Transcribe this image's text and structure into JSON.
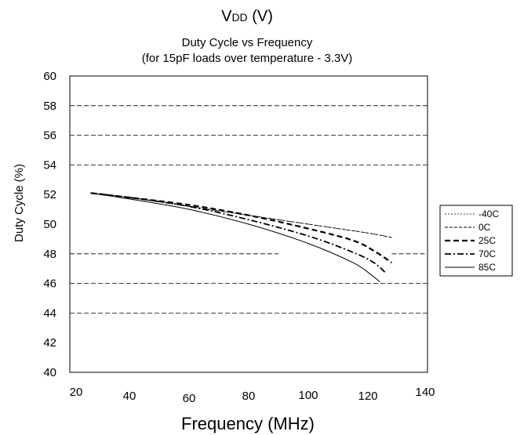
{
  "chart_data": {
    "type": "line",
    "header": "V<sub>DD</sub> (V)",
    "header_main": "V",
    "header_sub": "DD",
    "header_rest": " (V)",
    "title": "Duty Cycle vs Frequency",
    "subtitle": "(for 15pF loads over temperature - 3.3V)",
    "xlabel": "Frequency (MHz)",
    "ylabel": "Duty Cycle (%)",
    "xlim": [
      20,
      140
    ],
    "ylim": [
      40,
      60
    ],
    "xticks": [
      20,
      40,
      60,
      80,
      100,
      120,
      140
    ],
    "yticks": [
      40,
      42,
      44,
      46,
      48,
      50,
      52,
      54,
      56,
      58,
      60
    ],
    "gridlines_y": [
      {
        "y": 58,
        "x_from": 20,
        "x_to": 140
      },
      {
        "y": 56,
        "x_from": 20,
        "x_to": 140
      },
      {
        "y": 54,
        "x_from": 20,
        "x_to": 140
      },
      {
        "y": 48,
        "x_from": 20,
        "x_to": 90
      },
      {
        "y": 48,
        "x_from": 128,
        "x_to": 140
      },
      {
        "y": 46,
        "x_from": 20,
        "x_to": 140
      },
      {
        "y": 44,
        "x_from": 20,
        "x_to": 140
      }
    ],
    "legend_position": "right",
    "series": [
      {
        "name": "-40C",
        "style": "dotted-fine",
        "x": [
          27,
          40,
          60,
          80,
          100,
          120,
          128
        ],
        "y": [
          52.1,
          51.8,
          51.2,
          50.6,
          50.0,
          49.4,
          49.1
        ]
      },
      {
        "name": "0C",
        "style": "dashed-fine",
        "x": [
          27,
          40,
          60,
          80,
          100,
          120,
          128
        ],
        "y": [
          52.1,
          51.8,
          51.2,
          50.6,
          50.0,
          49.4,
          49.1
        ]
      },
      {
        "name": "25C",
        "style": "dashed-thick",
        "x": [
          27,
          40,
          60,
          80,
          100,
          115,
          122,
          128
        ],
        "y": [
          52.1,
          51.8,
          51.3,
          50.6,
          49.7,
          48.9,
          48.2,
          47.4
        ]
      },
      {
        "name": "70C",
        "style": "dash-dot",
        "x": [
          27,
          40,
          60,
          80,
          100,
          115,
          122,
          126
        ],
        "y": [
          52.1,
          51.8,
          51.2,
          50.3,
          49.2,
          48.1,
          47.4,
          46.7
        ]
      },
      {
        "name": "85C",
        "style": "solid",
        "x": [
          27,
          40,
          60,
          80,
          100,
          115,
          121,
          124
        ],
        "y": [
          52.1,
          51.7,
          51.0,
          50.0,
          48.7,
          47.4,
          46.6,
          46.1
        ]
      }
    ]
  },
  "colors": {
    "background": "#ffffff",
    "ink": "#000000"
  }
}
